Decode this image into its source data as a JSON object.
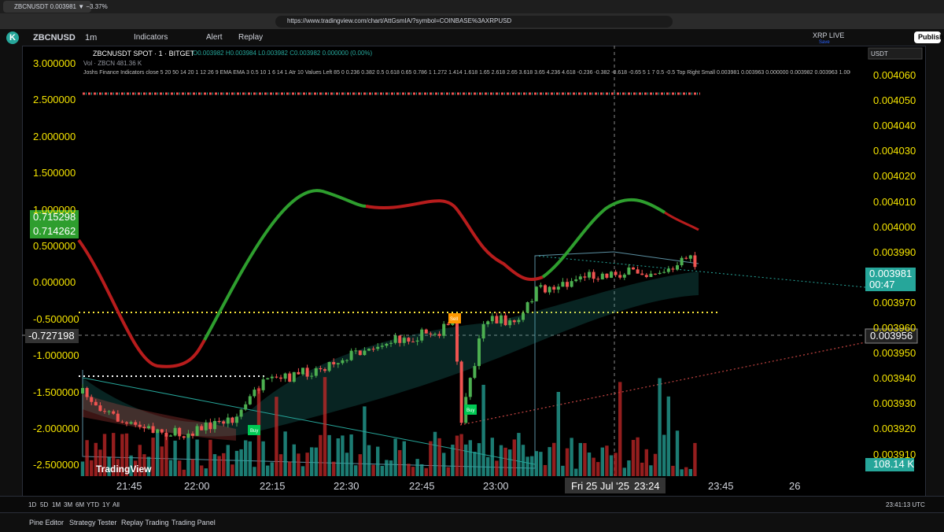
{
  "browser": {
    "tab_title": "ZBCNUSDT 0.003981 ▼ −3.37%",
    "url": "https://www.tradingview.com/chart/AttGsmIA/?symbol=COINBASE%3AXRPUSD"
  },
  "toolbar": {
    "account": "K",
    "symbol": "ZBCNUSD",
    "interval": "1m",
    "indicators": "Indicators",
    "alert": "Alert",
    "replay": "Replay",
    "layout_name": "XRP LIVE",
    "save": "Save",
    "publish": "Publish"
  },
  "legend": {
    "symbol": "ZBCNUSDT SPOT · 1 · BITGET",
    "ohlc": "O0.003982 H0.003984 L0.003982 C0.003982 0.000000 (0.00%)",
    "volume": "Vol · ZBCN 481.36 K",
    "indicator": "Joshs Finance Indicators close 5 20 50 14 20 1 12 26 9 EMA EMA 3 0.5 10 1 6 14 1 Atr 10 Values Left 85 0 0.236 0.382 0.5 0.618 0.65 0.786 1 1.272 1.414 1.618 1.65 2.618 2.65 3.618 3.65 4.236 4.618 -0.236 -0.382 -0.618 -0.65 5 1 7 0.5 -0.5 Top Right Small 0.003981 0.003963 0.000000 0.003982 0.003963 1.000000 0.000000"
  },
  "left_axis": {
    "labels": [
      "3.000000",
      "2.500000",
      "2.000000",
      "1.500000",
      "1.000000",
      "0.500000",
      "0.000000",
      "-0.500000",
      "-1.000000",
      "-1.500000",
      "-2.000000",
      "-2.500000"
    ],
    "markers": [
      "0.715298",
      "0.714262",
      "-0.727198"
    ]
  },
  "right_axis": {
    "currency": "USDT",
    "labels": [
      "0.004060",
      "0.004050",
      "0.004040",
      "0.004030",
      "0.004020",
      "0.004010",
      "0.004000",
      "0.003990",
      "0.003970",
      "0.003960",
      "0.003950",
      "0.003940",
      "0.003930",
      "0.003920",
      "0.003910"
    ],
    "last_price": "0.003981",
    "countdown": "00:47",
    "crosshair_price": "0.003956",
    "volume": "108.14 K"
  },
  "time_axis": {
    "labels": [
      "21:45",
      "22:00",
      "22:15",
      "22:30",
      "22:45",
      "23:00",
      "23:45",
      "26"
    ],
    "crosshair_date": "Fri 25 Jul '25",
    "crosshair_time": "23:24"
  },
  "signals": [
    "Sell",
    "Buy",
    "Buy"
  ],
  "watermark": "TradingView",
  "range_bar": {
    "ranges": [
      "1D",
      "5D",
      "1M",
      "3M",
      "6M",
      "YTD",
      "1Y",
      "All"
    ],
    "clock": "23:41:13 UTC"
  },
  "bottom_tabs": [
    "Pine Editor",
    "Strategy Tester",
    "Replay Trading",
    "Trading Panel"
  ]
}
